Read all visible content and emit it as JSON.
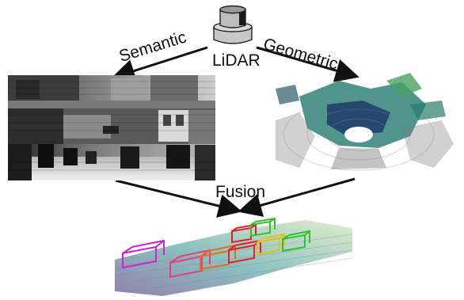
{
  "labels": {
    "semantic": "Semantic",
    "geometric": "Geometric",
    "lidar": "LiDAR",
    "fusion": "Fusion"
  },
  "icons": {
    "sensor": "lidar-sensor-icon"
  },
  "colors": {
    "arrow": "#111111",
    "sensor_body": "#c8c8c8",
    "sensor_top": "#9a9a9a",
    "box_magenta": "#d020d0",
    "box_red": "#e0202a",
    "box_green": "#30c030",
    "box_orange": "#e07020",
    "box_yellow": "#e0c020",
    "point_purple": "#4b1f7a",
    "point_teal": "#2a8c8c",
    "point_green": "#6ac44a"
  }
}
